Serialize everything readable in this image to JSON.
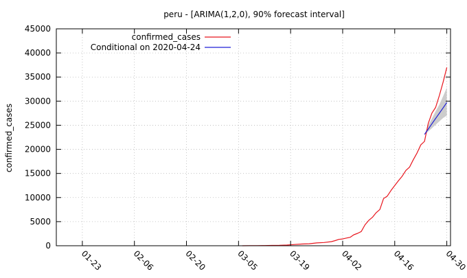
{
  "chart_data": {
    "type": "line",
    "title": "peru -  [ARIMA(1,2,0), 90% forecast interval]",
    "xlabel": "",
    "ylabel": "confirmed_cases",
    "x_ticks": [
      "01-23",
      "02-06",
      "02-20",
      "03-05",
      "03-19",
      "04-02",
      "04-16",
      "04-30"
    ],
    "xlim": [
      "2020-01-16",
      "2020-05-01"
    ],
    "ylim": [
      0,
      45000
    ],
    "y_ticks": [
      0,
      5000,
      10000,
      15000,
      20000,
      25000,
      30000,
      35000,
      40000,
      45000
    ],
    "grid": true,
    "legend_position": "top-left",
    "series": [
      {
        "name": "confirmed_cases",
        "color": "#e8141c",
        "x": [
          "2020-03-06",
          "2020-03-08",
          "2020-03-10",
          "2020-03-12",
          "2020-03-14",
          "2020-03-16",
          "2020-03-18",
          "2020-03-20",
          "2020-03-22",
          "2020-03-24",
          "2020-03-26",
          "2020-03-28",
          "2020-03-30",
          "2020-03-31",
          "2020-04-01",
          "2020-04-02",
          "2020-04-03",
          "2020-04-04",
          "2020-04-05",
          "2020-04-06",
          "2020-04-07",
          "2020-04-08",
          "2020-04-09",
          "2020-04-10",
          "2020-04-11",
          "2020-04-12",
          "2020-04-13",
          "2020-04-14",
          "2020-04-15",
          "2020-04-16",
          "2020-04-17",
          "2020-04-18",
          "2020-04-19",
          "2020-04-20",
          "2020-04-21",
          "2020-04-22",
          "2020-04-23",
          "2020-04-24",
          "2020-04-25",
          "2020-04-26",
          "2020-04-27",
          "2020-04-28",
          "2020-04-29",
          "2020-04-30"
        ],
        "values": [
          1,
          10,
          17,
          38,
          71,
          86,
          145,
          263,
          363,
          416,
          580,
          671,
          852,
          1065,
          1323,
          1414,
          1595,
          1746,
          2281,
          2561,
          2954,
          4342,
          5256,
          5897,
          6848,
          7519,
          9784,
          10303,
          11475,
          12491,
          13489,
          14420,
          15628,
          16325,
          17837,
          19250,
          20914,
          21648,
          25331,
          27517,
          28699,
          31190,
          33931,
          36976
        ]
      },
      {
        "name": "Conditional on 2020-04-24",
        "color": "#1f1fd6",
        "x": [
          "2020-04-24",
          "2020-04-25",
          "2020-04-26",
          "2020-04-27",
          "2020-04-28",
          "2020-04-29",
          "2020-04-30"
        ],
        "values": [
          23100,
          24200,
          25300,
          26400,
          27500,
          28600,
          29700
        ]
      }
    ],
    "forecast_interval": {
      "level": "90%",
      "color": "#cccccc",
      "x": [
        "2020-04-24",
        "2020-04-25",
        "2020-04-26",
        "2020-04-27",
        "2020-04-28",
        "2020-04-29",
        "2020-04-30"
      ],
      "lower": [
        23100,
        23700,
        24400,
        25100,
        25800,
        26500,
        27000
      ],
      "upper": [
        23100,
        24900,
        26400,
        27900,
        29300,
        31000,
        32800
      ]
    }
  }
}
